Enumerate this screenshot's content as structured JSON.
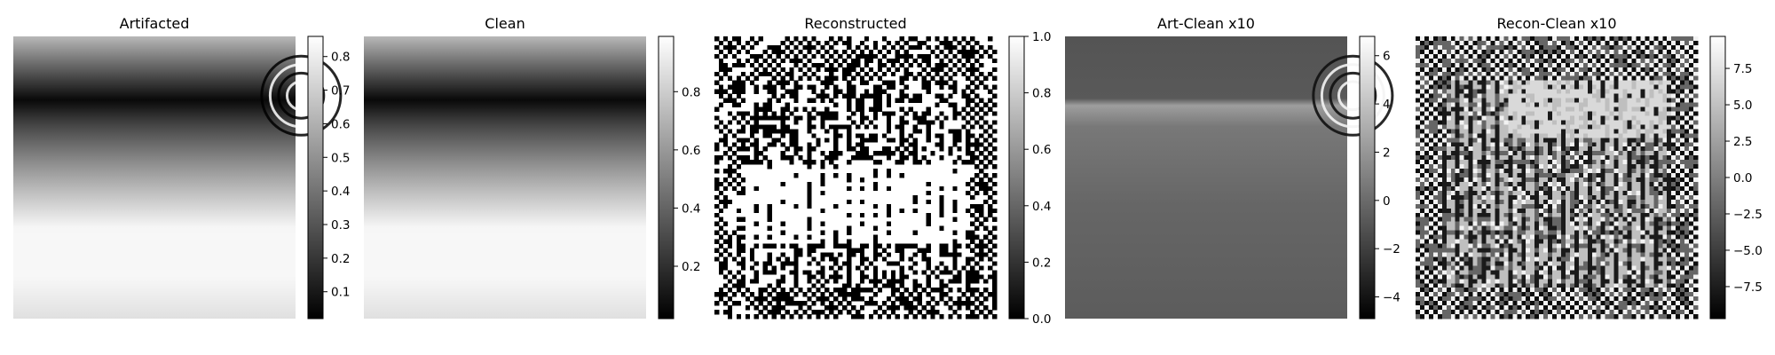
{
  "chart_data": [
    {
      "type": "heatmap",
      "title": "Artifacted",
      "colormap": "gray",
      "pattern": "smooth-with-artifact",
      "colorbar_ticks": [
        {
          "value": 0.1,
          "label": "0.1"
        },
        {
          "value": 0.2,
          "label": "0.2"
        },
        {
          "value": 0.3,
          "label": "0.3"
        },
        {
          "value": 0.4,
          "label": "0.4"
        },
        {
          "value": 0.5,
          "label": "0.5"
        },
        {
          "value": 0.6,
          "label": "0.6"
        },
        {
          "value": 0.7,
          "label": "0.7"
        },
        {
          "value": 0.8,
          "label": "0.8"
        }
      ],
      "colorbar_range": [
        0.02,
        0.86
      ]
    },
    {
      "type": "heatmap",
      "title": "Clean",
      "colormap": "gray",
      "pattern": "smooth",
      "colorbar_ticks": [
        {
          "value": 0.2,
          "label": "0.2"
        },
        {
          "value": 0.4,
          "label": "0.4"
        },
        {
          "value": 0.6,
          "label": "0.6"
        },
        {
          "value": 0.8,
          "label": "0.8"
        }
      ],
      "colorbar_range": [
        0.02,
        0.99
      ]
    },
    {
      "type": "heatmap",
      "title": "Reconstructed",
      "colormap": "gray",
      "pattern": "binary-noise",
      "colorbar_ticks": [
        {
          "value": 0.0,
          "label": "0.0"
        },
        {
          "value": 0.2,
          "label": "0.2"
        },
        {
          "value": 0.4,
          "label": "0.4"
        },
        {
          "value": 0.6,
          "label": "0.6"
        },
        {
          "value": 0.8,
          "label": "0.8"
        },
        {
          "value": 1.0,
          "label": "1.0"
        }
      ],
      "colorbar_range": [
        0.0,
        1.0
      ]
    },
    {
      "type": "heatmap",
      "title": "Art-Clean x10",
      "colormap": "gray",
      "pattern": "difference-artifact",
      "colorbar_ticks": [
        {
          "value": -4,
          "label": "−4"
        },
        {
          "value": -2,
          "label": "−2"
        },
        {
          "value": 0,
          "label": "0"
        },
        {
          "value": 2,
          "label": "2"
        },
        {
          "value": 4,
          "label": "4"
        },
        {
          "value": 6,
          "label": "6"
        }
      ],
      "colorbar_range": [
        -4.9,
        6.8
      ]
    },
    {
      "type": "heatmap",
      "title": "Recon-Clean x10",
      "colormap": "gray",
      "pattern": "difference-noise",
      "colorbar_ticks": [
        {
          "value": -7.5,
          "label": "−7.5"
        },
        {
          "value": -5.0,
          "label": "−5.0"
        },
        {
          "value": -2.5,
          "label": "−2.5"
        },
        {
          "value": 0.0,
          "label": "0.0"
        },
        {
          "value": 2.5,
          "label": "2.5"
        },
        {
          "value": 5.0,
          "label": "5.0"
        },
        {
          "value": 7.5,
          "label": "7.5"
        }
      ],
      "colorbar_range": [
        -9.7,
        9.7
      ]
    }
  ]
}
